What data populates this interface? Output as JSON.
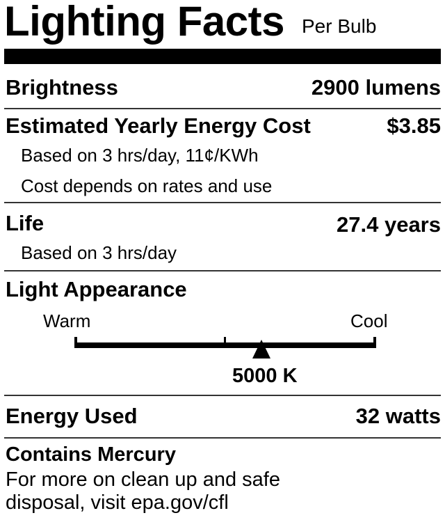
{
  "header": {
    "title": "Lighting Facts",
    "subtitle": "Per Bulb"
  },
  "brightness": {
    "label": "Brightness",
    "value": "2900 lumens"
  },
  "energy_cost": {
    "label": "Estimated Yearly Energy Cost",
    "value": "$3.85",
    "note1": "Based on 3 hrs/day, 11¢/KWh",
    "note2": "Cost depends on rates and use"
  },
  "life": {
    "label": "Life",
    "value": "27.4 years",
    "note": "Based on 3 hrs/day"
  },
  "light_appearance": {
    "label": "Light Appearance",
    "warm_label": "Warm",
    "cool_label": "Cool",
    "value": "5000 K",
    "scale_position_fraction": 0.62
  },
  "energy_used": {
    "label": "Energy Used",
    "value": "32 watts"
  },
  "mercury": {
    "label": "Contains Mercury",
    "line1": "For more on clean up and safe",
    "line2": "disposal, visit epa.gov/cfl"
  }
}
